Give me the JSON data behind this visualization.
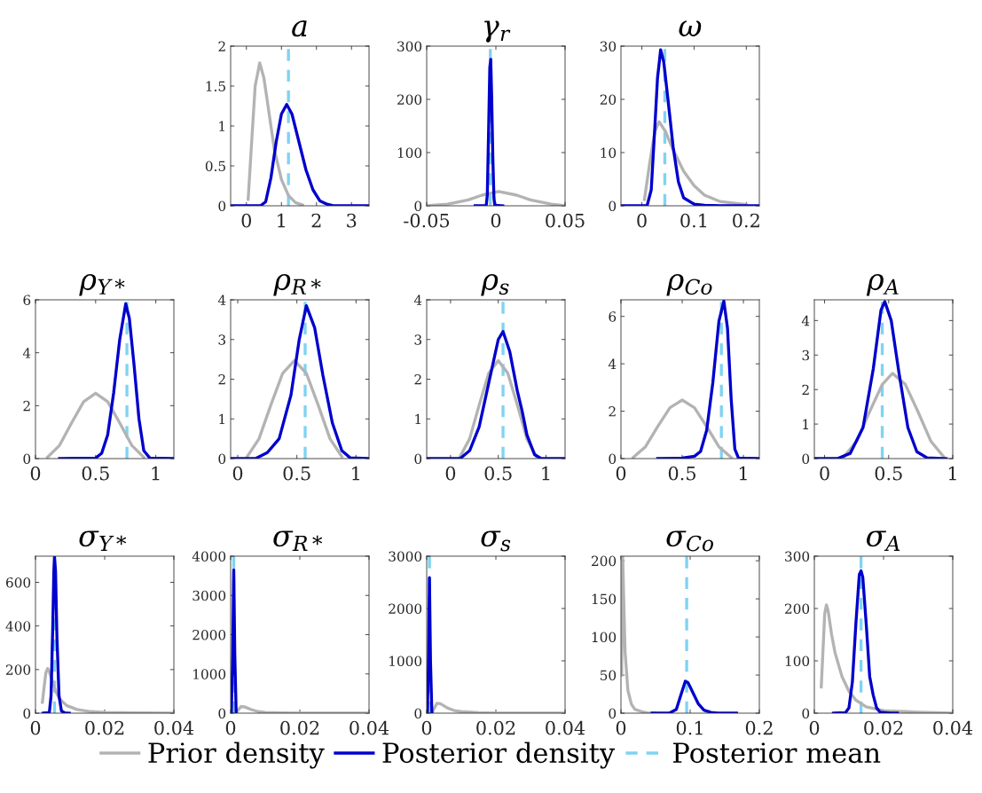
{
  "chart_data": [
    {
      "type": "line",
      "title": "a",
      "xlim": [
        -0.45,
        3.5
      ],
      "xticks": [
        0,
        1,
        2,
        3
      ],
      "ylim": [
        0,
        2
      ],
      "yticks": [
        0,
        0.5,
        1,
        1.5,
        2
      ],
      "grid": false,
      "legend": "bottom",
      "series": [
        {
          "name": "Prior density",
          "color": "#b3b3b3",
          "x": [
            0.05,
            0.15,
            0.25,
            0.38,
            0.5,
            0.65,
            0.8,
            1.0,
            1.2,
            1.4,
            1.6
          ],
          "values": [
            0.08,
            0.8,
            1.5,
            1.79,
            1.6,
            1.15,
            0.7,
            0.33,
            0.13,
            0.04,
            0.01
          ]
        },
        {
          "name": "Posterior density",
          "color": "#0000cd",
          "x": [
            -0.45,
            0.4,
            0.55,
            0.7,
            0.85,
            1.0,
            1.15,
            1.3,
            1.5,
            1.7,
            1.9,
            2.1,
            2.3,
            2.5,
            3.5
          ],
          "values": [
            0,
            0,
            0.05,
            0.35,
            0.8,
            1.15,
            1.27,
            1.15,
            0.8,
            0.45,
            0.2,
            0.06,
            0.02,
            0,
            0
          ]
        }
      ],
      "ref_lines": [
        {
          "axis": "x",
          "value": 1.2,
          "label": "Posterior mean",
          "color": "#7fd3f2",
          "line_style": "dashed"
        }
      ]
    },
    {
      "type": "line",
      "title": "γ$_{r}$",
      "xlim": [
        -0.05,
        0.05
      ],
      "xticks": [
        -0.05,
        0,
        0.05
      ],
      "ylim": [
        0,
        300
      ],
      "yticks": [
        0,
        100,
        200,
        300
      ],
      "grid": false,
      "series": [
        {
          "name": "Prior density",
          "color": "#b3b3b3",
          "x": [
            -0.05,
            -0.035,
            -0.02,
            -0.01,
            0.002,
            0.015,
            0.025,
            0.04,
            0.05
          ],
          "values": [
            0,
            3,
            11,
            20,
            27,
            20,
            11,
            3,
            0
          ]
        },
        {
          "name": "Posterior density",
          "color": "#0000cd",
          "x": [
            -0.015,
            -0.007,
            -0.0062,
            -0.0052,
            -0.0044,
            -0.0037,
            -0.003,
            -0.0022,
            -0.0014,
            -0.0008,
            0.005
          ],
          "values": [
            0,
            0,
            20,
            150,
            260,
            275,
            200,
            90,
            15,
            1,
            0
          ]
        }
      ],
      "ref_lines": [
        {
          "axis": "x",
          "value": -0.004,
          "color": "#7fd3f2",
          "line_style": "dashed"
        }
      ]
    },
    {
      "type": "line",
      "title": "ω",
      "xlim": [
        -0.04,
        0.225
      ],
      "xticks": [
        0,
        0.1,
        0.2
      ],
      "ylim": [
        0,
        30
      ],
      "yticks": [
        0,
        10,
        20,
        30
      ],
      "grid": false,
      "series": [
        {
          "name": "Prior density",
          "color": "#b3b3b3",
          "x": [
            0.005,
            0.015,
            0.025,
            0.033,
            0.045,
            0.06,
            0.08,
            0.1,
            0.12,
            0.15,
            0.2
          ],
          "values": [
            1.2,
            8,
            14,
            15.8,
            14,
            10.5,
            6.5,
            3.8,
            2,
            0.8,
            0.2
          ]
        },
        {
          "name": "Posterior density",
          "color": "#0000cd",
          "x": [
            -0.04,
            0.01,
            0.018,
            0.025,
            0.03,
            0.036,
            0.042,
            0.05,
            0.06,
            0.07,
            0.08,
            0.1,
            0.12,
            0.15,
            0.225
          ],
          "values": [
            0,
            0,
            3,
            15,
            24,
            29.3,
            27,
            20,
            11,
            4.5,
            1.5,
            0.3,
            0.1,
            0,
            0
          ]
        }
      ],
      "ref_lines": [
        {
          "axis": "x",
          "value": 0.044,
          "color": "#7fd3f2",
          "line_style": "dashed"
        }
      ]
    },
    {
      "type": "line",
      "title": "ρ$_{Y*}$",
      "xlim": [
        0,
        1.15
      ],
      "xticks": [
        0,
        0.5,
        1
      ],
      "ylim": [
        0,
        6
      ],
      "yticks": [
        0,
        2,
        4,
        6
      ],
      "grid": false,
      "series": [
        {
          "name": "Prior density",
          "color": "#b3b3b3",
          "x": [
            0.1,
            0.2,
            0.3,
            0.4,
            0.5,
            0.6,
            0.7,
            0.8,
            0.9
          ],
          "values": [
            0.05,
            0.5,
            1.35,
            2.15,
            2.47,
            2.15,
            1.35,
            0.5,
            0.05
          ]
        },
        {
          "name": "Posterior density",
          "color": "#0000cd",
          "x": [
            0.2,
            0.5,
            0.55,
            0.6,
            0.65,
            0.7,
            0.75,
            0.78,
            0.82,
            0.86,
            0.9,
            0.95,
            1.15
          ],
          "values": [
            0,
            0.02,
            0.2,
            0.9,
            2.5,
            4.5,
            5.85,
            5.3,
            3.5,
            1.5,
            0.3,
            0.02,
            0
          ]
        }
      ],
      "ref_lines": [
        {
          "axis": "x",
          "value": 0.76,
          "color": "#7fd3f2",
          "line_style": "dashed"
        }
      ]
    },
    {
      "type": "line",
      "title": "ρ$_{R*}$",
      "xlim": [
        -0.06,
        1.11
      ],
      "xticks": [
        0,
        0.5,
        1
      ],
      "ylim": [
        0,
        4
      ],
      "yticks": [
        0,
        1,
        2,
        3,
        4
      ],
      "grid": false,
      "series": [
        {
          "name": "Prior density",
          "color": "#b3b3b3",
          "x": [
            0.08,
            0.18,
            0.28,
            0.38,
            0.48,
            0.58,
            0.68,
            0.78,
            0.88
          ],
          "values": [
            0.05,
            0.5,
            1.35,
            2.15,
            2.47,
            2.15,
            1.35,
            0.5,
            0.05
          ]
        },
        {
          "name": "Posterior density",
          "color": "#0000cd",
          "x": [
            -0.06,
            0.15,
            0.25,
            0.35,
            0.45,
            0.52,
            0.58,
            0.65,
            0.72,
            0.8,
            0.88,
            0.95,
            1.11
          ],
          "values": [
            0,
            0,
            0.15,
            0.5,
            1.6,
            3.0,
            3.85,
            3.3,
            2.1,
            0.9,
            0.2,
            0.02,
            0
          ]
        }
      ],
      "ref_lines": [
        {
          "axis": "x",
          "value": 0.57,
          "color": "#7fd3f2",
          "line_style": "dashed"
        }
      ]
    },
    {
      "type": "line",
      "title": "ρ$_{s}$",
      "xlim": [
        -0.25,
        1.2
      ],
      "xticks": [
        0,
        0.5,
        1
      ],
      "ylim": [
        0,
        4
      ],
      "yticks": [
        0,
        1,
        2,
        3,
        4
      ],
      "grid": false,
      "series": [
        {
          "name": "Prior density",
          "color": "#b3b3b3",
          "x": [
            0.1,
            0.2,
            0.3,
            0.4,
            0.5,
            0.6,
            0.7,
            0.8,
            0.9
          ],
          "values": [
            0.05,
            0.5,
            1.35,
            2.15,
            2.47,
            2.15,
            1.35,
            0.5,
            0.05
          ]
        },
        {
          "name": "Posterior density",
          "color": "#0000cd",
          "x": [
            -0.25,
            0.1,
            0.2,
            0.3,
            0.4,
            0.5,
            0.55,
            0.62,
            0.7,
            0.75,
            0.8,
            0.88,
            0.95,
            1.2
          ],
          "values": [
            0,
            0,
            0.2,
            0.8,
            1.9,
            3.0,
            3.2,
            2.7,
            1.7,
            1.2,
            0.6,
            0.1,
            0,
            0
          ]
        }
      ],
      "ref_lines": [
        {
          "axis": "x",
          "value": 0.55,
          "color": "#7fd3f2",
          "line_style": "dashed"
        }
      ]
    },
    {
      "type": "line",
      "title": "ρ$_{Co}$",
      "xlim": [
        0,
        1.13
      ],
      "xticks": [
        0,
        0.5,
        1
      ],
      "ylim": [
        0,
        6.7
      ],
      "yticks": [
        0,
        2,
        4,
        6
      ],
      "grid": false,
      "series": [
        {
          "name": "Prior density",
          "color": "#b3b3b3",
          "x": [
            0.1,
            0.2,
            0.3,
            0.4,
            0.5,
            0.6,
            0.7,
            0.8,
            0.9
          ],
          "values": [
            0.05,
            0.5,
            1.35,
            2.15,
            2.47,
            2.15,
            1.35,
            0.5,
            0.05
          ]
        },
        {
          "name": "Posterior density",
          "color": "#0000cd",
          "x": [
            0.3,
            0.5,
            0.6,
            0.65,
            0.7,
            0.75,
            0.8,
            0.84,
            0.87,
            0.9,
            0.93,
            0.96,
            1.13
          ],
          "values": [
            0,
            0.02,
            0.1,
            0.3,
            1.2,
            3.2,
            5.8,
            6.65,
            5.5,
            2.5,
            0.4,
            0.02,
            0
          ]
        }
      ],
      "ref_lines": [
        {
          "axis": "x",
          "value": 0.82,
          "color": "#7fd3f2",
          "line_style": "dashed"
        }
      ]
    },
    {
      "type": "line",
      "title": "ρ$_{A}$",
      "xlim": [
        -0.08,
        1.0
      ],
      "xticks": [
        0,
        0.5,
        1
      ],
      "ylim": [
        0,
        4.6
      ],
      "yticks": [
        0,
        1,
        2,
        3,
        4
      ],
      "grid": false,
      "series": [
        {
          "name": "Prior density",
          "color": "#b3b3b3",
          "x": [
            0.15,
            0.25,
            0.35,
            0.45,
            0.53,
            0.63,
            0.73,
            0.83,
            0.93
          ],
          "values": [
            0.05,
            0.5,
            1.35,
            2.15,
            2.47,
            2.15,
            1.35,
            0.5,
            0.05
          ]
        },
        {
          "name": "Posterior density",
          "color": "#0000cd",
          "x": [
            -0.08,
            0.1,
            0.2,
            0.3,
            0.38,
            0.44,
            0.47,
            0.52,
            0.58,
            0.65,
            0.72,
            0.8,
            0.95
          ],
          "values": [
            0,
            0,
            0.15,
            0.9,
            2.6,
            4.3,
            4.55,
            4.0,
            2.5,
            0.9,
            0.2,
            0.02,
            0
          ]
        }
      ],
      "ref_lines": [
        {
          "axis": "x",
          "value": 0.45,
          "color": "#7fd3f2",
          "line_style": "dashed"
        }
      ]
    },
    {
      "type": "line",
      "title": "σ$_{Y*}$",
      "xlim": [
        0,
        0.04
      ],
      "xticks": [
        0,
        0.02,
        0.04
      ],
      "ylim": [
        0,
        720
      ],
      "yticks": [
        0,
        200,
        400,
        600
      ],
      "grid": false,
      "series": [
        {
          "name": "Prior density",
          "color": "#b3b3b3",
          "x": [
            0.002,
            0.0025,
            0.003,
            0.0035,
            0.004,
            0.005,
            0.006,
            0.007,
            0.009,
            0.012,
            0.016,
            0.02,
            0.03,
            0.04
          ],
          "values": [
            50,
            120,
            185,
            205,
            190,
            140,
            95,
            65,
            35,
            17,
            7,
            3,
            1,
            0
          ]
        },
        {
          "name": "Posterior density",
          "color": "#0000cd",
          "x": [
            0.0022,
            0.004,
            0.0045,
            0.005,
            0.0053,
            0.0055,
            0.0058,
            0.0062,
            0.0068,
            0.0075,
            0.0085,
            0.0098
          ],
          "values": [
            0,
            2,
            80,
            400,
            650,
            715,
            650,
            350,
            80,
            10,
            1,
            0
          ]
        }
      ],
      "ref_lines": [
        {
          "axis": "x",
          "value": 0.0055,
          "color": "#7fd3f2",
          "line_style": "dashed"
        }
      ]
    },
    {
      "type": "line",
      "title": "σ$_{R*}$",
      "xlim": [
        0,
        0.04
      ],
      "xticks": [
        0,
        0.02,
        0.04
      ],
      "ylim": [
        0,
        4000
      ],
      "yticks": [
        0,
        1000,
        2000,
        3000,
        4000
      ],
      "grid": false,
      "series": [
        {
          "name": "Prior density",
          "color": "#b3b3b3",
          "x": [
            0.0015,
            0.002,
            0.003,
            0.004,
            0.006,
            0.008,
            0.01,
            0.015,
            0.02,
            0.03,
            0.04
          ],
          "values": [
            0,
            60,
            170,
            160,
            90,
            40,
            20,
            10,
            0,
            0,
            0
          ]
        },
        {
          "name": "Posterior density",
          "color": "#0000cd",
          "x": [
            0.0002,
            0.0006,
            0.0009,
            0.0012,
            0.0016
          ],
          "values": [
            0,
            1500,
            3650,
            1500,
            0
          ]
        }
      ],
      "ref_lines": [
        {
          "axis": "x",
          "value": 0.0009,
          "color": "#7fd3f2",
          "line_style": "dashed"
        }
      ]
    },
    {
      "type": "line",
      "title": "σ$_{s}$",
      "xlim": [
        0,
        0.04
      ],
      "xticks": [
        0,
        0.02,
        0.04
      ],
      "ylim": [
        0,
        3000
      ],
      "yticks": [
        0,
        1000,
        2000,
        3000
      ],
      "grid": false,
      "series": [
        {
          "name": "Prior density",
          "color": "#b3b3b3",
          "x": [
            0.0015,
            0.002,
            0.003,
            0.004,
            0.006,
            0.008,
            0.01,
            0.015,
            0.02,
            0.03,
            0.04
          ],
          "values": [
            0,
            70,
            190,
            180,
            100,
            50,
            30,
            10,
            0,
            0,
            0
          ]
        },
        {
          "name": "Posterior density",
          "color": "#0000cd",
          "x": [
            0.0002,
            0.0005,
            0.0008,
            0.0011,
            0.0015
          ],
          "values": [
            0,
            1000,
            2590,
            1000,
            0
          ]
        }
      ],
      "ref_lines": [
        {
          "axis": "x",
          "value": 0.0008,
          "color": "#7fd3f2",
          "line_style": "dashed"
        }
      ]
    },
    {
      "type": "line",
      "title": "σ$_{Co}$",
      "xlim": [
        0,
        0.2
      ],
      "xticks": [
        0,
        0.1,
        0.2
      ],
      "ylim": [
        0,
        206
      ],
      "yticks": [
        0,
        50,
        100,
        150,
        200
      ],
      "grid": false,
      "series": [
        {
          "name": "Prior density",
          "color": "#b3b3b3",
          "x": [
            0.001,
            0.0025,
            0.004,
            0.006,
            0.01,
            0.015,
            0.02,
            0.03,
            0.04,
            0.05
          ],
          "values": [
            50,
            206,
            150,
            80,
            30,
            12,
            5,
            2,
            0,
            0
          ]
        },
        {
          "name": "Posterior density",
          "color": "#0000cd",
          "x": [
            0.045,
            0.07,
            0.08,
            0.087,
            0.093,
            0.097,
            0.105,
            0.112,
            0.12,
            0.13,
            0.14,
            0.167
          ],
          "values": [
            0,
            0,
            5,
            25,
            42,
            40,
            25,
            12,
            4,
            1,
            0,
            0
          ]
        }
      ],
      "ref_lines": [
        {
          "axis": "x",
          "value": 0.095,
          "color": "#7fd3f2",
          "line_style": "dashed"
        }
      ]
    },
    {
      "type": "line",
      "title": "σ$_{A}$",
      "xlim": [
        0,
        0.04
      ],
      "xticks": [
        0,
        0.02,
        0.04
      ],
      "ylim": [
        0,
        300
      ],
      "yticks": [
        0,
        100,
        200,
        300
      ],
      "grid": false,
      "series": [
        {
          "name": "Prior density",
          "color": "#b3b3b3",
          "x": [
            0.002,
            0.0025,
            0.003,
            0.0035,
            0.004,
            0.005,
            0.006,
            0.008,
            0.01,
            0.012,
            0.015,
            0.02,
            0.03,
            0.04
          ],
          "values": [
            50,
            120,
            190,
            207,
            195,
            150,
            115,
            70,
            42,
            25,
            12,
            5,
            2,
            0
          ]
        },
        {
          "name": "Posterior density",
          "color": "#0000cd",
          "x": [
            0.0055,
            0.009,
            0.01,
            0.011,
            0.012,
            0.013,
            0.0135,
            0.014,
            0.015,
            0.016,
            0.017,
            0.018,
            0.019,
            0.022,
            0.024
          ],
          "values": [
            0,
            1,
            10,
            60,
            170,
            265,
            272,
            260,
            170,
            70,
            35,
            10,
            2,
            0,
            0
          ]
        }
      ],
      "ref_lines": [
        {
          "axis": "x",
          "value": 0.0135,
          "color": "#7fd3f2",
          "line_style": "dashed"
        }
      ]
    }
  ]
}
